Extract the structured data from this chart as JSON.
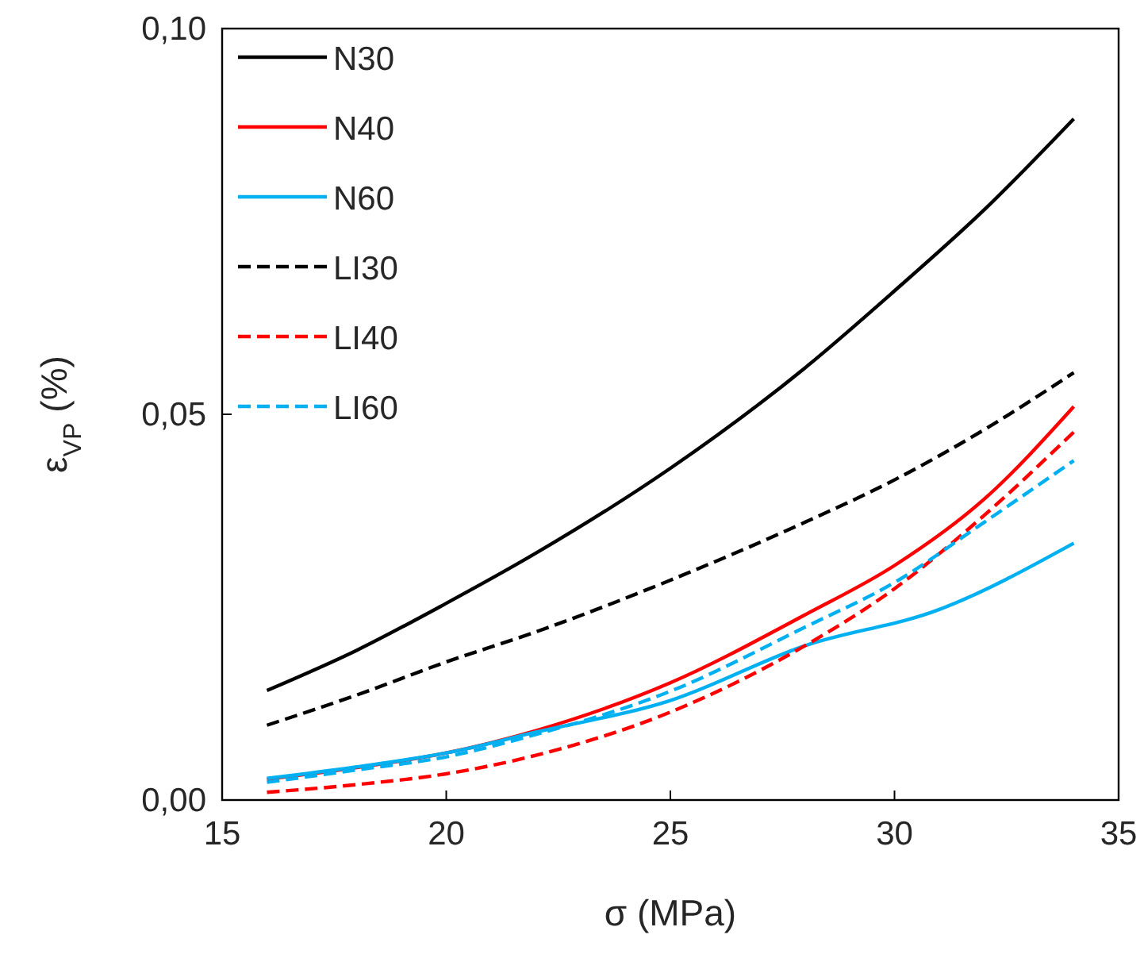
{
  "chart_data": {
    "type": "line",
    "xlabel": "σ (MPa)",
    "ylabel": "ε$_{VP}$ (%)",
    "x": [
      16,
      18,
      20,
      22,
      25,
      28,
      30,
      32,
      34
    ],
    "xlim": [
      15,
      35
    ],
    "xticks": [
      15,
      20,
      25,
      30,
      35
    ],
    "ylim": [
      0,
      0.1
    ],
    "yticks": [
      {
        "value": 0,
        "label": "0,00"
      },
      {
        "value": 0.05,
        "label": "0,05"
      },
      {
        "value": 0.1,
        "label": "0,10"
      }
    ],
    "legend": "top left",
    "grid": false,
    "series": [
      {
        "name": "N30",
        "color": "#000000",
        "line_style": "solid",
        "values": [
          0.0142,
          0.0194,
          0.0255,
          0.032,
          0.043,
          0.056,
          0.066,
          0.0765,
          0.0883
        ]
      },
      {
        "name": "N40",
        "color": "#ff0000",
        "line_style": "solid",
        "values": [
          0.0027,
          0.0042,
          0.0061,
          0.009,
          0.0152,
          0.024,
          0.0304,
          0.039,
          0.051
        ]
      },
      {
        "name": "N60",
        "color": "#00b0f0",
        "line_style": "solid",
        "x": [
          16,
          18,
          20,
          22,
          25,
          28,
          31,
          34
        ],
        "values": [
          0.0028,
          0.0043,
          0.0061,
          0.0088,
          0.0129,
          0.02,
          0.0247,
          0.0333
        ]
      },
      {
        "name": "LI30",
        "color": "#000000",
        "line_style": "dashed",
        "values": [
          0.0097,
          0.0136,
          0.0179,
          0.0218,
          0.0285,
          0.036,
          0.0415,
          0.048,
          0.0554
        ]
      },
      {
        "name": "LI40",
        "color": "#ff0000",
        "line_style": "dashed",
        "values": [
          0.001,
          0.002,
          0.0034,
          0.0058,
          0.0114,
          0.02,
          0.0274,
          0.0369,
          0.0477
        ]
      },
      {
        "name": "LI60",
        "color": "#00b0f0",
        "line_style": "dashed",
        "values": [
          0.0023,
          0.0039,
          0.0056,
          0.0085,
          0.0141,
          0.0224,
          0.0282,
          0.036,
          0.044
        ]
      }
    ]
  }
}
